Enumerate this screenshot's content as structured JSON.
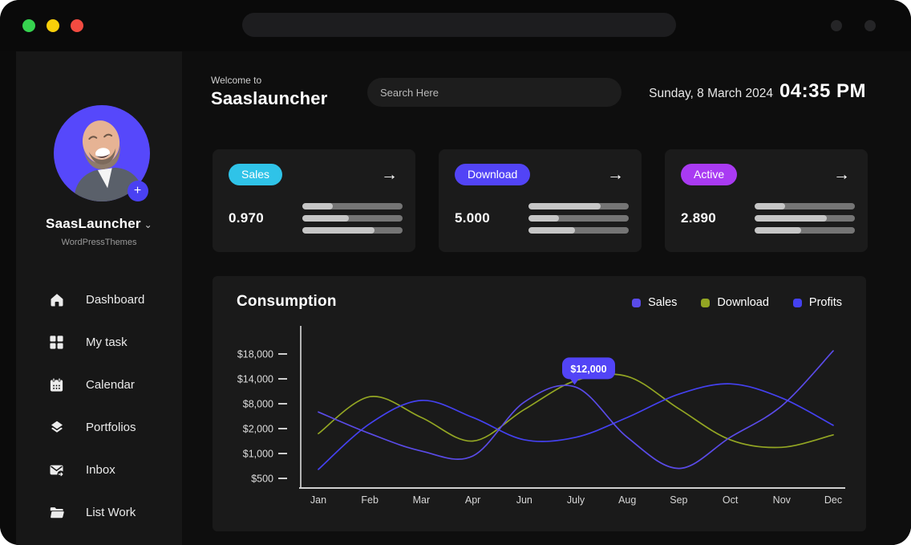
{
  "titlebar": {
    "traffic_lights": {
      "green": "#36d34f",
      "yellow": "#f9cf0a",
      "red": "#f24b41"
    }
  },
  "sidebar": {
    "profile": {
      "name": "SaasLauncher",
      "subtitle": "WordPressThemes",
      "add_label": "+"
    },
    "items": [
      {
        "icon": "home-icon",
        "label": "Dashboard"
      },
      {
        "icon": "grid-icon",
        "label": "My task"
      },
      {
        "icon": "calendar-icon",
        "label": "Calendar"
      },
      {
        "icon": "layers-icon",
        "label": "Portfolios"
      },
      {
        "icon": "inbox-icon",
        "label": "Inbox"
      },
      {
        "icon": "folder-icon",
        "label": "List Work"
      }
    ]
  },
  "header": {
    "welcome_label": "Welcome to",
    "app_name": "Saaslauncher",
    "search_placeholder": "Search Here",
    "date": "Sunday, 8 March 2024",
    "time": "04:35 PM"
  },
  "stat_cards": [
    {
      "label": "Sales",
      "pill_color": "#2fc3e8",
      "value": "0.970",
      "arrow": "→",
      "bars": [
        30,
        46,
        72
      ]
    },
    {
      "label": "Download",
      "pill_color": "#5244f6",
      "value": "5.000",
      "arrow": "→",
      "bars": [
        72,
        30,
        46
      ]
    },
    {
      "label": "Active",
      "pill_color": "#a93af2",
      "value": "2.890",
      "arrow": "→",
      "bars": [
        30,
        72,
        46
      ]
    }
  ],
  "chart": {
    "title": "Consumption",
    "tooltip": {
      "text": "$12,000",
      "series": "Sales",
      "month": "July",
      "color": "#5244f6"
    }
  },
  "chart_data": {
    "type": "line",
    "title": "Consumption",
    "x": [
      "Jan",
      "Feb",
      "Mar",
      "Apr",
      "Jun",
      "July",
      "Aug",
      "Sep",
      "Oct",
      "Nov",
      "Dec"
    ],
    "y_ticks": [
      500,
      1000,
      2000,
      8000,
      14000,
      18000
    ],
    "y_tick_labels": [
      "$500",
      "$1,000",
      "$2,000",
      "$8,000",
      "$14,000",
      "$18,000"
    ],
    "legend_position": "top-right",
    "grid": false,
    "series": [
      {
        "name": "Sales",
        "color": "#5a4be8",
        "values": [
          6000,
          1800,
          1100,
          950,
          8400,
          12000,
          1650,
          700,
          1650,
          7500,
          18500
        ]
      },
      {
        "name": "Download",
        "color": "#93a623",
        "values": [
          1800,
          9700,
          4700,
          1500,
          6600,
          13600,
          14400,
          6800,
          1550,
          1250,
          1750
        ]
      },
      {
        "name": "Profits",
        "color": "#4441f0",
        "values": [
          680,
          3200,
          8800,
          4700,
          1550,
          1650,
          4700,
          10300,
          12800,
          9400,
          2800
        ]
      }
    ]
  }
}
